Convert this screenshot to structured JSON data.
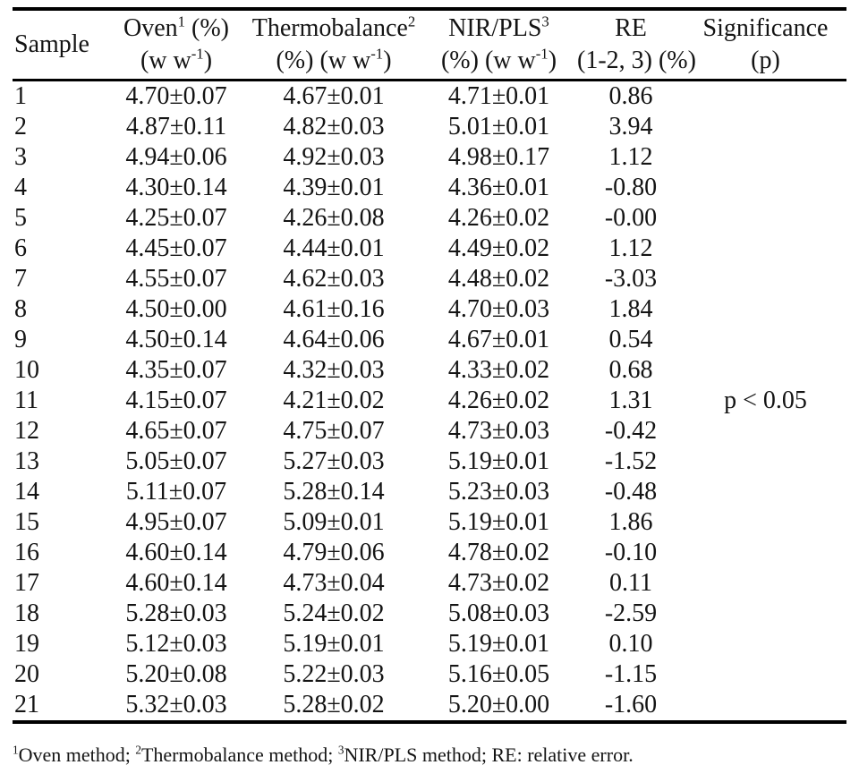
{
  "table": {
    "header": {
      "sample": "Sample",
      "cols": [
        {
          "title": "Oven",
          "sup": "1",
          "title_after": " (%)",
          "unit_pre": "(w w",
          "unit_sup": "-1",
          "unit_post": ")"
        },
        {
          "title": "Thermobalance",
          "sup": "2",
          "title_after": "",
          "unit_pre": "(%) (w w",
          "unit_sup": "-1",
          "unit_post": ")"
        },
        {
          "title": "NIR/PLS",
          "sup": "3",
          "title_after": "",
          "unit_pre": "(%) (w w",
          "unit_sup": "-1",
          "unit_post": ")"
        },
        {
          "title": "RE",
          "sup": "",
          "title_after": "",
          "unit_pre": "(1-2, 3) (%)",
          "unit_sup": "",
          "unit_post": ""
        },
        {
          "title": "Significance",
          "sup": "",
          "title_after": "",
          "unit_pre": "(p)",
          "unit_sup": "",
          "unit_post": ""
        }
      ]
    },
    "rows": [
      {
        "sample": "1",
        "oven": "4.70±0.07",
        "thermobalance": "4.67±0.01",
        "nir_pls": "4.71±0.01",
        "re": "0.86"
      },
      {
        "sample": "2",
        "oven": "4.87±0.11",
        "thermobalance": "4.82±0.03",
        "nir_pls": "5.01±0.01",
        "re": "3.94"
      },
      {
        "sample": "3",
        "oven": "4.94±0.06",
        "thermobalance": "4.92±0.03",
        "nir_pls": "4.98±0.17",
        "re": "1.12"
      },
      {
        "sample": "4",
        "oven": "4.30±0.14",
        "thermobalance": "4.39±0.01",
        "nir_pls": "4.36±0.01",
        "re": "-0.80"
      },
      {
        "sample": "5",
        "oven": "4.25±0.07",
        "thermobalance": "4.26±0.08",
        "nir_pls": "4.26±0.02",
        "re": "-0.00"
      },
      {
        "sample": "6",
        "oven": "4.45±0.07",
        "thermobalance": "4.44±0.01",
        "nir_pls": "4.49±0.02",
        "re": "1.12"
      },
      {
        "sample": "7",
        "oven": "4.55±0.07",
        "thermobalance": "4.62±0.03",
        "nir_pls": "4.48±0.02",
        "re": "-3.03"
      },
      {
        "sample": "8",
        "oven": "4.50±0.00",
        "thermobalance": "4.61±0.16",
        "nir_pls": "4.70±0.03",
        "re": "1.84"
      },
      {
        "sample": "9",
        "oven": "4.50±0.14",
        "thermobalance": "4.64±0.06",
        "nir_pls": "4.67±0.01",
        "re": "0.54"
      },
      {
        "sample": "10",
        "oven": "4.35±0.07",
        "thermobalance": "4.32±0.03",
        "nir_pls": "4.33±0.02",
        "re": "0.68"
      },
      {
        "sample": "11",
        "oven": "4.15±0.07",
        "thermobalance": "4.21±0.02",
        "nir_pls": "4.26±0.02",
        "re": "1.31"
      },
      {
        "sample": "12",
        "oven": "4.65±0.07",
        "thermobalance": "4.75±0.07",
        "nir_pls": "4.73±0.03",
        "re": "-0.42"
      },
      {
        "sample": "13",
        "oven": "5.05±0.07",
        "thermobalance": "5.27±0.03",
        "nir_pls": "5.19±0.01",
        "re": "-1.52"
      },
      {
        "sample": "14",
        "oven": "5.11±0.07",
        "thermobalance": "5.28±0.14",
        "nir_pls": "5.23±0.03",
        "re": "-0.48"
      },
      {
        "sample": "15",
        "oven": "4.95±0.07",
        "thermobalance": "5.09±0.01",
        "nir_pls": "5.19±0.01",
        "re": "1.86"
      },
      {
        "sample": "16",
        "oven": "4.60±0.14",
        "thermobalance": "4.79±0.06",
        "nir_pls": "4.78±0.02",
        "re": "-0.10"
      },
      {
        "sample": "17",
        "oven": "4.60±0.14",
        "thermobalance": "4.73±0.04",
        "nir_pls": "4.73±0.02",
        "re": "0.11"
      },
      {
        "sample": "18",
        "oven": "5.28±0.03",
        "thermobalance": "5.24±0.02",
        "nir_pls": "5.08±0.03",
        "re": "-2.59"
      },
      {
        "sample": "19",
        "oven": "5.12±0.03",
        "thermobalance": "5.19±0.01",
        "nir_pls": "5.19±0.01",
        "re": "0.10"
      },
      {
        "sample": "20",
        "oven": "5.20±0.08",
        "thermobalance": "5.22±0.03",
        "nir_pls": "5.16±0.05",
        "re": "-1.15"
      },
      {
        "sample": "21",
        "oven": "5.32±0.03",
        "thermobalance": "5.28±0.02",
        "nir_pls": "5.20±0.00",
        "re": "-1.60"
      }
    ],
    "significance_value": "p < 0.05"
  },
  "footnote": {
    "parts": [
      {
        "sup": "1",
        "text": "Oven method; "
      },
      {
        "sup": "2",
        "text": "Thermobalance method; "
      },
      {
        "sup": "3",
        "text": "NIR/PLS method; RE: relative error."
      }
    ]
  },
  "colors": {
    "text": "#141414",
    "rule": "#000000",
    "background": "#ffffff"
  }
}
